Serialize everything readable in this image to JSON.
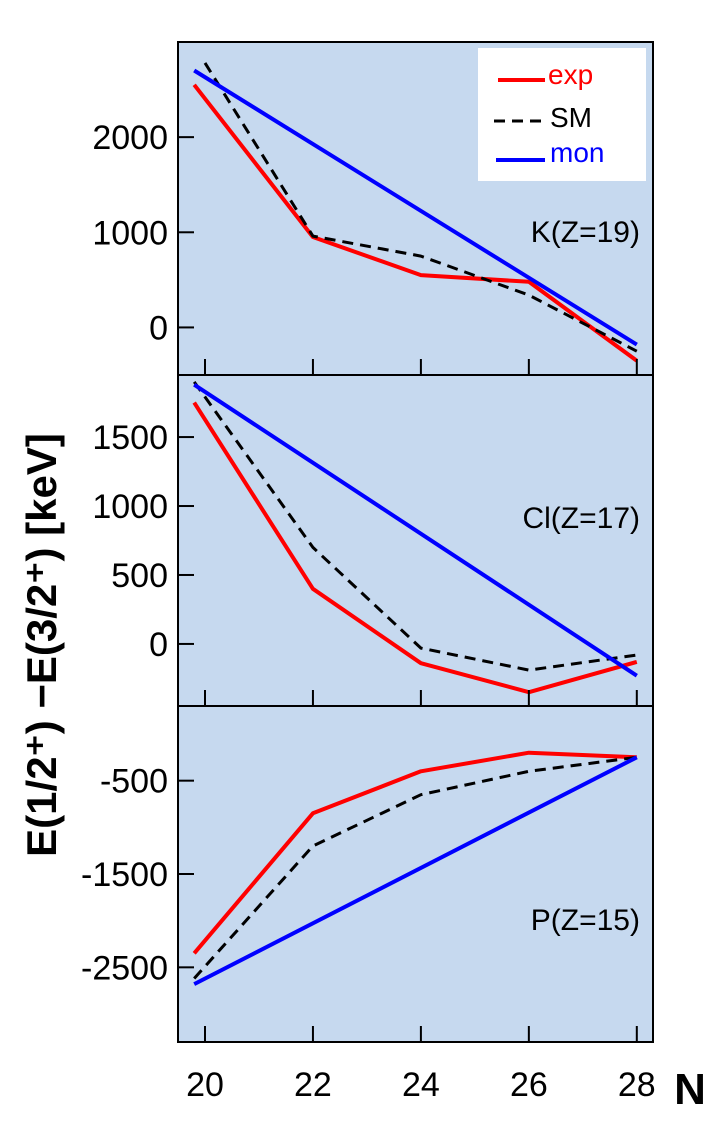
{
  "chart_data": {
    "type": "line",
    "xlabel": "N",
    "ylabel": "E(1/2⁺) −E(3/2⁺) [keV]",
    "x_ticks": [
      20,
      22,
      24,
      26,
      28
    ],
    "legend": {
      "placement": "top-right",
      "entries": [
        {
          "name": "exp",
          "color": "#ff0000",
          "dash": "solid"
        },
        {
          "name": "SM",
          "color": "#000000",
          "dash": "dashed"
        },
        {
          "name": "mon",
          "color": "#0000ff",
          "dash": "solid"
        }
      ]
    },
    "background_color": "#c6d9ef",
    "panels": [
      {
        "label": "K(Z=19)",
        "ylim": [
          -500,
          3000
        ],
        "y_ticks": [
          2000,
          1000,
          0
        ],
        "series": [
          {
            "name": "exp",
            "x": [
              19.8,
              22,
              24,
              26,
              28
            ],
            "y": [
              2550,
              950,
              550,
              480,
              -350
            ]
          },
          {
            "name": "SM",
            "x": [
              20,
              22,
              24,
              26,
              28
            ],
            "y": [
              2780,
              960,
              750,
              340,
              -250
            ]
          },
          {
            "name": "mon",
            "x": [
              19.8,
              28
            ],
            "y": [
              2700,
              -180
            ]
          }
        ]
      },
      {
        "label": "Cl(Z=17)",
        "ylim": [
          -450,
          1950
        ],
        "y_ticks": [
          1500,
          1000,
          500,
          0
        ],
        "series": [
          {
            "name": "exp",
            "x": [
              19.8,
              22,
              24,
              26,
              28
            ],
            "y": [
              1750,
              400,
              -140,
              -350,
              -130
            ]
          },
          {
            "name": "SM",
            "x": [
              19.8,
              22,
              24,
              26,
              28
            ],
            "y": [
              1900,
              700,
              -30,
              -190,
              -80
            ]
          },
          {
            "name": "mon",
            "x": [
              19.8,
              28
            ],
            "y": [
              1880,
              -230
            ]
          }
        ]
      },
      {
        "label": "P(Z=15)",
        "ylim": [
          -3300,
          300
        ],
        "y_ticks": [
          -500,
          -1500,
          -2500
        ],
        "series": [
          {
            "name": "exp",
            "x": [
              19.8,
              22,
              24,
              26,
              28
            ],
            "y": [
              -2350,
              -850,
              -400,
              -200,
              -250
            ]
          },
          {
            "name": "SM",
            "x": [
              19.8,
              22,
              24,
              26,
              28
            ],
            "y": [
              -2620,
              -1200,
              -650,
              -400,
              -250
            ]
          },
          {
            "name": "mon",
            "x": [
              19.8,
              28
            ],
            "y": [
              -2680,
              -250
            ]
          }
        ]
      }
    ]
  }
}
